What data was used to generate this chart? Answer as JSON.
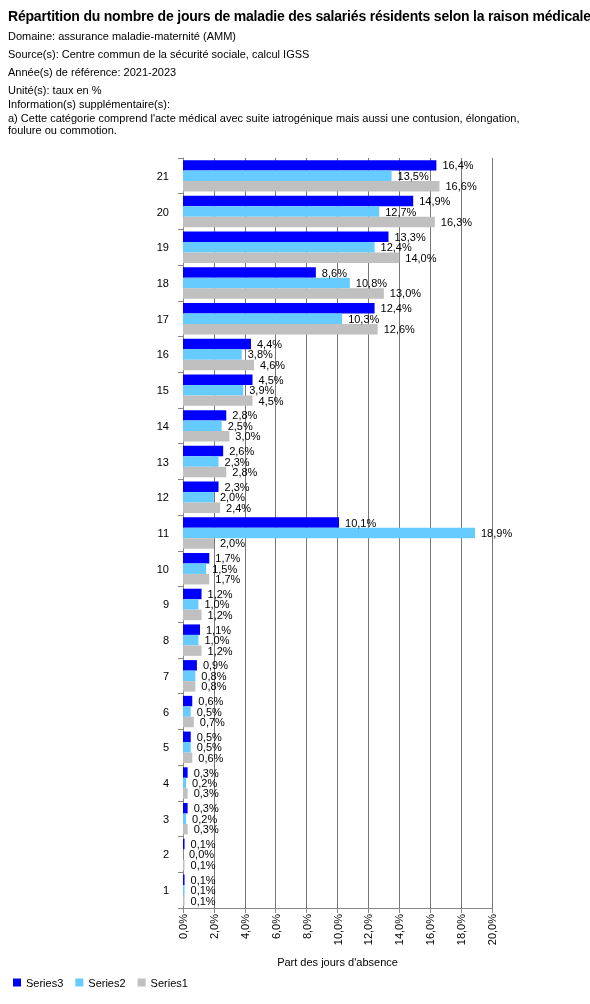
{
  "chart_data": {
    "type": "bar",
    "orientation": "horizontal",
    "title": "Répartition du nombre de jours de maladie des salariés résidents selon la raison médicale",
    "annotations": [
      "Domaine: assurance maladie-maternité (AMM)",
      "Source(s): Centre commun de la sécurité sociale, calcul IGSS",
      "Année(s) de référence: 2021-2023",
      "Unité(s): taux en %",
      "Information(s) supplémentaire(s):",
      "a) Cette catégorie comprend l'acte médical avec suite iatrogénique mais aussi une contusion, élongation, foulure ou commotion."
    ],
    "xlabel": "Part des jours d'absence",
    "categories": [
      "21",
      "20",
      "19",
      "18",
      "17",
      "16",
      "15",
      "14",
      "13",
      "12",
      "11",
      "10",
      "9",
      "8",
      "7",
      "6",
      "5",
      "4",
      "3",
      "2",
      "1"
    ],
    "series": [
      {
        "name": "Series3",
        "color": "#0000ff",
        "values": [
          16.4,
          14.9,
          13.3,
          8.6,
          12.4,
          4.4,
          4.5,
          2.8,
          2.6,
          2.3,
          10.1,
          1.7,
          1.2,
          1.1,
          0.9,
          0.6,
          0.5,
          0.3,
          0.3,
          0.1,
          0.1
        ],
        "value_labels": [
          "16,4%",
          "14,9%",
          "13,3%",
          "8,6%",
          "12,4%",
          "4,4%",
          "4,5%",
          "2,8%",
          "2,6%",
          "2,3%",
          "10,1%",
          "1,7%",
          "1,2%",
          "1,1%",
          "0,9%",
          "0,6%",
          "0,5%",
          "0,3%",
          "0,3%",
          "0,1%",
          "0,1%"
        ]
      },
      {
        "name": "Series2",
        "color": "#66ccff",
        "values": [
          13.5,
          12.7,
          12.4,
          10.8,
          10.3,
          3.8,
          3.9,
          2.5,
          2.3,
          2.0,
          18.9,
          1.5,
          1.0,
          1.0,
          0.8,
          0.5,
          0.5,
          0.2,
          0.2,
          0.0,
          0.1
        ],
        "value_labels": [
          "13,5%",
          "12,7%",
          "12,4%",
          "10,8%",
          "10,3%",
          "3,8%",
          "3,9%",
          "2,5%",
          "2,3%",
          "2,0%",
          "18,9%",
          "1,5%",
          "1,0%",
          "1,0%",
          "0,8%",
          "0,5%",
          "0,5%",
          "0,2%",
          "0,2%",
          "0,0%",
          "0,1%"
        ]
      },
      {
        "name": "Series1",
        "color": "#c0c0c0",
        "values": [
          16.6,
          16.3,
          14.0,
          13.0,
          12.6,
          4.6,
          4.5,
          3.0,
          2.8,
          2.4,
          2.0,
          1.7,
          1.2,
          1.2,
          0.8,
          0.7,
          0.6,
          0.3,
          0.3,
          0.1,
          0.1
        ],
        "value_labels": [
          "16,6%",
          "16,3%",
          "14,0%",
          "13,0%",
          "12,6%",
          "4,6%",
          "4,5%",
          "3,0%",
          "2,8%",
          "2,4%",
          "2,0%",
          "1,7%",
          "1,2%",
          "1,2%",
          "0,8%",
          "0,7%",
          "0,6%",
          "0,3%",
          "0,3%",
          "0,1%",
          "0,1%"
        ]
      }
    ],
    "xlim": [
      0,
      20
    ],
    "xticks": [
      {
        "value": 0,
        "label": "0,0%"
      },
      {
        "value": 2,
        "label": "2,0%"
      },
      {
        "value": 4,
        "label": "4,0%"
      },
      {
        "value": 6,
        "label": "6,0%"
      },
      {
        "value": 8,
        "label": "8,0%"
      },
      {
        "value": 10,
        "label": "10,0%"
      },
      {
        "value": 12,
        "label": "12,0%"
      },
      {
        "value": 14,
        "label": "14,0%"
      },
      {
        "value": 16,
        "label": "16,0%"
      },
      {
        "value": 18,
        "label": "18,0%"
      },
      {
        "value": 20,
        "label": "20,0%"
      }
    ],
    "grid": "x",
    "legend": "bottom left"
  }
}
